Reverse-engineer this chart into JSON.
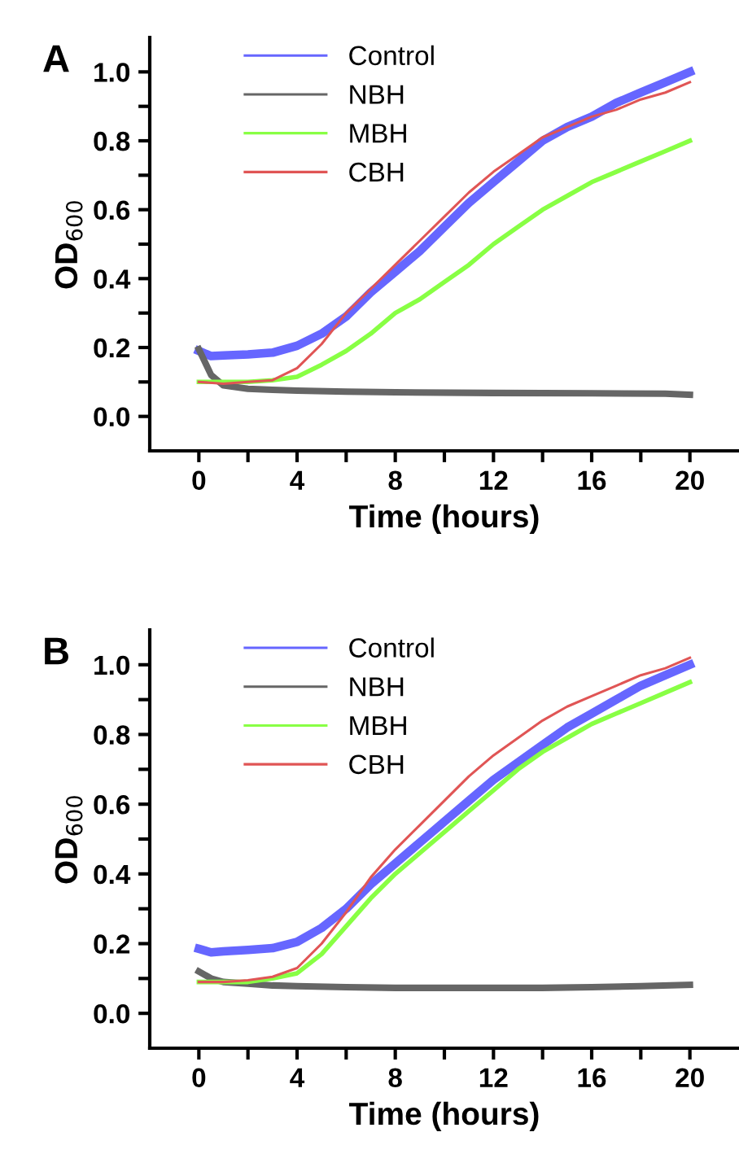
{
  "chart_data": [
    {
      "type": "line",
      "annotations": [
        "A"
      ],
      "xlabel": "Time (hours)",
      "ylabel": "OD$_{600}$",
      "xlim": [
        -2,
        22
      ],
      "ylim": [
        -0.1,
        1.1
      ],
      "xticks": [
        0,
        {
          "value": 2,
          "label": null
        },
        4,
        {
          "value": 6,
          "label": null
        },
        8,
        {
          "value": 10,
          "label": null
        },
        12,
        {
          "value": 14,
          "label": null
        },
        16,
        {
          "value": 18,
          "label": null
        },
        20
      ],
      "yticks": [
        {
          "value": 0.0,
          "label": "0.0"
        },
        {
          "value": 0.1,
          "label": null
        },
        0.2,
        {
          "value": 0.3,
          "label": null
        },
        0.4,
        {
          "value": 0.5,
          "label": null
        },
        0.6,
        {
          "value": 0.7,
          "label": null
        },
        0.8,
        {
          "value": 0.9,
          "label": null
        },
        {
          "value": 1.0,
          "label": "1.0"
        }
      ],
      "legend": "top left",
      "grid": false,
      "marker": "none",
      "line_style": "solid",
      "series": [
        {
          "name": "Control",
          "color": "#6666ff",
          "x": [
            0,
            0.5,
            1,
            2,
            3,
            4,
            5,
            6,
            7,
            8,
            9,
            10,
            11,
            12,
            13,
            14,
            15,
            16,
            17,
            18,
            19,
            20
          ],
          "values": [
            0.19,
            0.175,
            0.177,
            0.18,
            0.185,
            0.205,
            0.24,
            0.29,
            0.36,
            0.42,
            0.48,
            0.55,
            0.62,
            0.68,
            0.74,
            0.8,
            0.84,
            0.87,
            0.91,
            0.94,
            0.97,
            1.0
          ]
        },
        {
          "name": "NBH",
          "color": "#666666",
          "x": [
            0,
            0.5,
            1,
            2,
            3,
            4,
            6,
            8,
            12,
            16,
            19,
            20
          ],
          "values": [
            0.195,
            0.12,
            0.09,
            0.08,
            0.077,
            0.075,
            0.072,
            0.07,
            0.068,
            0.067,
            0.066,
            0.063
          ]
        },
        {
          "name": "MBH",
          "color": "#88ff44",
          "x": [
            0,
            1,
            2,
            3,
            4,
            5,
            6,
            7,
            8,
            9,
            10,
            11,
            12,
            13,
            14,
            15,
            16,
            17,
            18,
            19,
            20
          ],
          "values": [
            0.1,
            0.1,
            0.1,
            0.105,
            0.115,
            0.15,
            0.19,
            0.24,
            0.3,
            0.34,
            0.39,
            0.44,
            0.5,
            0.55,
            0.6,
            0.64,
            0.68,
            0.71,
            0.74,
            0.77,
            0.8
          ]
        },
        {
          "name": "CBH",
          "color": "#e05555",
          "x": [
            0,
            1,
            2,
            3,
            4,
            5,
            6,
            7,
            8,
            9,
            10,
            11,
            12,
            13,
            14,
            15,
            16,
            17,
            18,
            19,
            20
          ],
          "values": [
            0.1,
            0.095,
            0.1,
            0.105,
            0.14,
            0.21,
            0.3,
            0.37,
            0.44,
            0.51,
            0.58,
            0.65,
            0.71,
            0.76,
            0.81,
            0.84,
            0.87,
            0.89,
            0.92,
            0.94,
            0.97
          ]
        }
      ]
    },
    {
      "type": "line",
      "annotations": [
        "B"
      ],
      "xlabel": "Time (hours)",
      "ylabel": "OD$_{600}$",
      "xlim": [
        -2,
        22
      ],
      "ylim": [
        -0.1,
        1.1
      ],
      "xticks": [
        0,
        {
          "value": 2,
          "label": null
        },
        4,
        {
          "value": 6,
          "label": null
        },
        8,
        {
          "value": 10,
          "label": null
        },
        12,
        {
          "value": 14,
          "label": null
        },
        16,
        {
          "value": 18,
          "label": null
        },
        20
      ],
      "yticks": [
        {
          "value": 0.0,
          "label": "0.0"
        },
        {
          "value": 0.1,
          "label": null
        },
        0.2,
        {
          "value": 0.3,
          "label": null
        },
        0.4,
        {
          "value": 0.5,
          "label": null
        },
        0.6,
        {
          "value": 0.7,
          "label": null
        },
        0.8,
        {
          "value": 0.9,
          "label": null
        },
        {
          "value": 1.0,
          "label": "1.0"
        }
      ],
      "legend": "top left",
      "grid": false,
      "marker": "none",
      "line_style": "solid",
      "series": [
        {
          "name": "Control",
          "color": "#6666ff",
          "x": [
            0,
            0.5,
            1,
            2,
            3,
            4,
            5,
            6,
            7,
            8,
            9,
            10,
            11,
            12,
            13,
            14,
            15,
            16,
            17,
            18,
            19,
            20
          ],
          "values": [
            0.185,
            0.175,
            0.178,
            0.182,
            0.187,
            0.205,
            0.245,
            0.3,
            0.37,
            0.43,
            0.49,
            0.55,
            0.61,
            0.67,
            0.72,
            0.77,
            0.82,
            0.86,
            0.9,
            0.94,
            0.97,
            1.0
          ]
        },
        {
          "name": "NBH",
          "color": "#666666",
          "x": [
            0,
            0.5,
            1,
            2,
            3,
            4,
            6,
            8,
            12,
            14,
            16,
            18,
            20
          ],
          "values": [
            0.12,
            0.1,
            0.09,
            0.085,
            0.08,
            0.078,
            0.075,
            0.073,
            0.073,
            0.073,
            0.075,
            0.078,
            0.082
          ]
        },
        {
          "name": "MBH",
          "color": "#88ff44",
          "x": [
            0,
            1,
            2,
            3,
            4,
            5,
            6,
            7,
            8,
            9,
            10,
            11,
            12,
            13,
            14,
            15,
            16,
            17,
            18,
            19,
            20
          ],
          "values": [
            0.09,
            0.09,
            0.09,
            0.1,
            0.115,
            0.17,
            0.25,
            0.33,
            0.4,
            0.46,
            0.52,
            0.58,
            0.64,
            0.7,
            0.75,
            0.79,
            0.83,
            0.86,
            0.89,
            0.92,
            0.95
          ]
        },
        {
          "name": "CBH",
          "color": "#e05555",
          "x": [
            0,
            1,
            2,
            3,
            4,
            5,
            6,
            7,
            8,
            9,
            10,
            11,
            12,
            13,
            14,
            15,
            16,
            17,
            18,
            19,
            20
          ],
          "values": [
            0.09,
            0.09,
            0.095,
            0.105,
            0.13,
            0.2,
            0.29,
            0.39,
            0.47,
            0.54,
            0.61,
            0.68,
            0.74,
            0.79,
            0.84,
            0.88,
            0.91,
            0.94,
            0.97,
            0.99,
            1.02
          ]
        }
      ]
    }
  ]
}
